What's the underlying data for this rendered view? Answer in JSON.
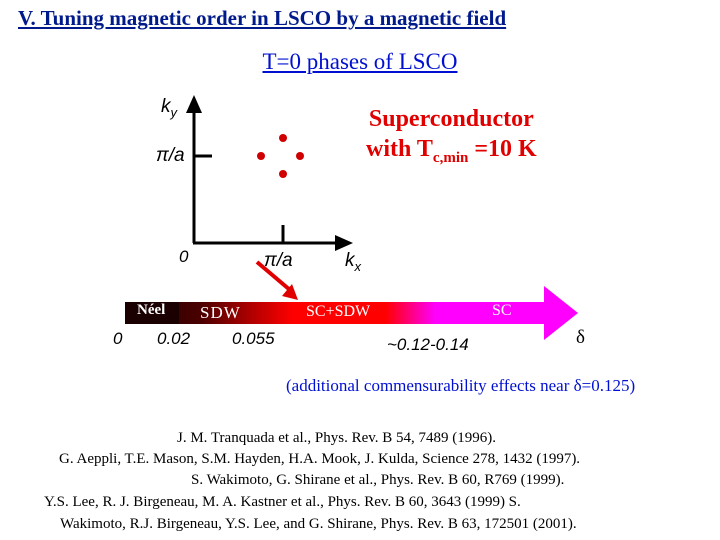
{
  "title": "V. Tuning magnetic order in LSCO by a magnetic field",
  "heading": "T=0 phases of LSCO",
  "superconductor": {
    "line1": "Superconductor",
    "line2_prefix": "with T",
    "line2_sub": "c,min",
    "line2_suffix": " =10 K"
  },
  "kspace": {
    "ky_main": "k",
    "ky_sub": "y",
    "kx_main": "k",
    "kx_sub": "x",
    "pi_over_a_y": "π/a",
    "pi_over_a_x": "π/a",
    "origin": "0"
  },
  "phase_bar": {
    "neel": "Néel",
    "sdw": "SDW",
    "sc_sdw": "SC+SDW",
    "sc": "SC",
    "tick_0": "0",
    "tick_002": "0.02",
    "tick_0055": "0.055",
    "range_012_014": "~0.12-0.14",
    "delta": "δ"
  },
  "note": {
    "prefix": "(additional commensurability effects near ",
    "delta": "δ",
    "suffix": "=0.125)"
  },
  "references": [
    "J. M. Tranquada et al., Phys. Rev. B 54, 7489 (1996).",
    "G. Aeppli, T.E. Mason, S.M. Hayden, H.A. Mook, J. Kulda, Science 278, 1432 (1997).",
    "S. Wakimoto, G. Shirane et al., Phys. Rev. B 60, R769 (1999).",
    "Y.S. Lee, R. J. Birgeneau, M. A. Kastner et al., Phys. Rev. B 60, 3643 (1999) S.",
    "Wakimoto, R.J. Birgeneau, Y.S. Lee, and G. Shirane, Phys. Rev. B 63, 172501 (2001)."
  ],
  "colors": {
    "title_blue": "#001a8c",
    "heading_blue": "#0010d0",
    "sc_red": "#e00000",
    "arrow_red": "#e00000",
    "bar_dark": "#1a0000",
    "bar_red": "#ff0000",
    "bar_magenta": "#ff00ff"
  }
}
